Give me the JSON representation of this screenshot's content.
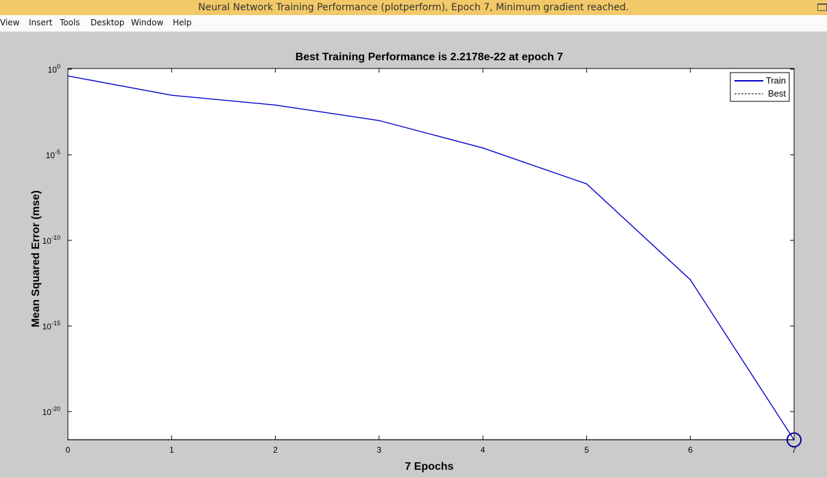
{
  "window": {
    "title": "Neural Network Training Performance (plotperform), Epoch 7, Minimum gradient reached."
  },
  "menu": {
    "items": [
      {
        "label": "View"
      },
      {
        "label": "Insert"
      },
      {
        "label": "Tools"
      },
      {
        "label": "Desktop"
      },
      {
        "label": "Window"
      },
      {
        "label": "Help"
      }
    ]
  },
  "colors": {
    "titlebar": "#f2c968",
    "figure_background": "#cbcbcb",
    "axes_background": "#ffffff",
    "train_line": "#0000cc"
  },
  "chart_data": {
    "type": "line",
    "title": "Best Training Performance is 2.2178e-22 at epoch 7",
    "xlabel": "7 Epochs",
    "ylabel": "Mean Squared Error  (mse)",
    "xlim": [
      0,
      7
    ],
    "ylim": [
      1e-22,
      1
    ],
    "yscale": "log",
    "grid": false,
    "legend_position": "top-right",
    "x_ticks": [
      "0",
      "1",
      "2",
      "3",
      "4",
      "5",
      "6",
      "7"
    ],
    "y_ticks": [
      {
        "base": "10",
        "exp": "0"
      },
      {
        "base": "10",
        "exp": "-5"
      },
      {
        "base": "10",
        "exp": "-10"
      },
      {
        "base": "10",
        "exp": "-15"
      },
      {
        "base": "10",
        "exp": "-20"
      }
    ],
    "series": [
      {
        "name": "Train",
        "style": "solid",
        "x": [
          0,
          1,
          2,
          3,
          4,
          5,
          6,
          7
        ],
        "y": [
          0.4,
          0.03,
          0.008,
          0.001,
          2.5e-05,
          2e-07,
          5e-13,
          2.2178e-22
        ]
      }
    ],
    "best": {
      "name": "Best",
      "style": "dotted",
      "epoch": 7,
      "value": 2.2178e-22
    }
  }
}
